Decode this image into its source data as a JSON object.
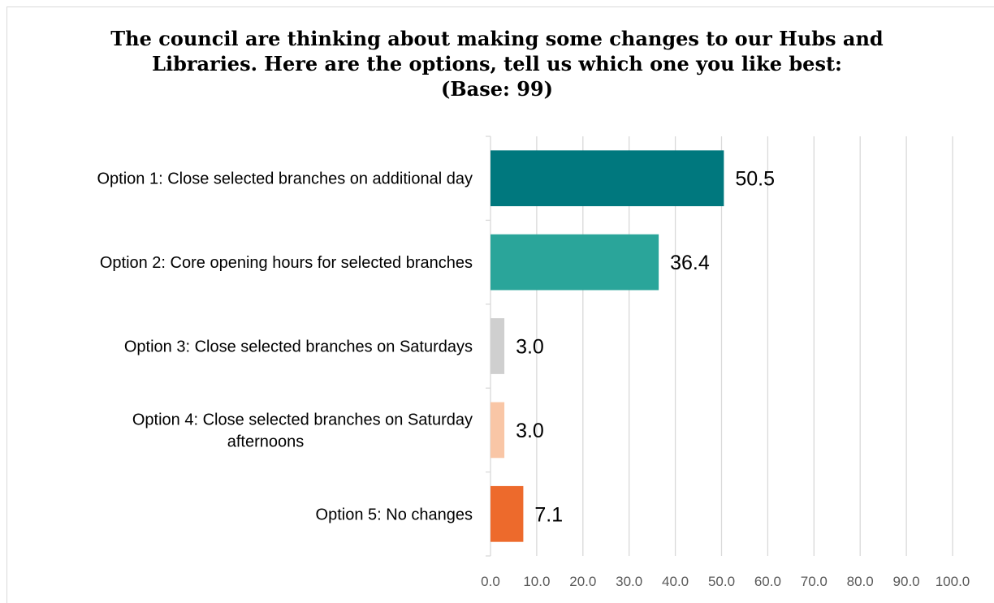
{
  "chart_data": {
    "type": "bar",
    "orientation": "horizontal",
    "title_lines": [
      "The council are thinking about making some changes to our Hubs and",
      "Libraries.   Here are the options, tell us which one you like best:",
      "(Base: 99)"
    ],
    "categories": [
      [
        "Option 1: Close selected branches on additional day"
      ],
      [
        "Option 2: Core opening hours for selected branches"
      ],
      [
        "Option 3: Close selected branches on Saturdays"
      ],
      [
        "Option 4: Close selected branches on Saturday",
        "afternoons"
      ],
      [
        "Option 5: No changes"
      ]
    ],
    "values": [
      50.5,
      36.4,
      3.0,
      3.0,
      7.1
    ],
    "value_labels": [
      "50.5",
      "36.4",
      "3.0",
      "3.0",
      "7.1"
    ],
    "colors": [
      "#00787e",
      "#2aa59a",
      "#cfcfcf",
      "#f9c6a6",
      "#ed6a2c"
    ],
    "xlim": [
      0,
      100
    ],
    "ticks": [
      0,
      10,
      20,
      30,
      40,
      50,
      60,
      70,
      80,
      90,
      100
    ],
    "tick_labels": [
      "0.0",
      "10.0",
      "20.0",
      "30.0",
      "40.0",
      "50.0",
      "60.0",
      "70.0",
      "80.0",
      "90.0",
      "100.0"
    ],
    "grid": true,
    "gridline_color": "#d9d9d9",
    "legend": "none"
  }
}
